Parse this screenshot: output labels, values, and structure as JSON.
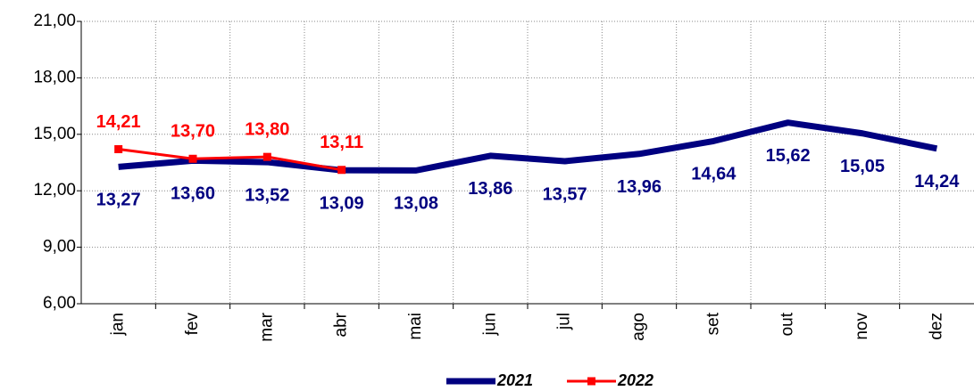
{
  "chart_data": {
    "type": "line",
    "categories": [
      "jan",
      "fev",
      "mar",
      "abr",
      "mai",
      "jun",
      "jul",
      "ago",
      "set",
      "out",
      "nov",
      "dez"
    ],
    "series": [
      {
        "name": "2021",
        "color": "#000080",
        "values": [
          13.27,
          13.6,
          13.52,
          13.09,
          13.08,
          13.86,
          13.57,
          13.96,
          14.64,
          15.62,
          15.05,
          14.24
        ],
        "value_labels": [
          "13,27",
          "13,60",
          "13,52",
          "13,09",
          "13,08",
          "13,86",
          "13,57",
          "13,96",
          "14,64",
          "15,62",
          "15,05",
          "14,24"
        ]
      },
      {
        "name": "2022",
        "color": "#ff0000",
        "values": [
          14.21,
          13.7,
          13.8,
          13.11,
          null,
          null,
          null,
          null,
          null,
          null,
          null,
          null
        ],
        "value_labels": [
          "14,21",
          "13,70",
          "13,80",
          "13,11",
          null,
          null,
          null,
          null,
          null,
          null,
          null,
          null
        ]
      }
    ],
    "ylim": [
      6,
      21
    ],
    "yticks": [
      {
        "value": 6,
        "label": "6,00"
      },
      {
        "value": 9,
        "label": "9,00"
      },
      {
        "value": 12,
        "label": "12,00"
      },
      {
        "value": 15,
        "label": "15,00"
      },
      {
        "value": 18,
        "label": "18,00"
      },
      {
        "value": 21,
        "label": "21,00"
      }
    ],
    "grid": true,
    "legend": "bottom"
  }
}
